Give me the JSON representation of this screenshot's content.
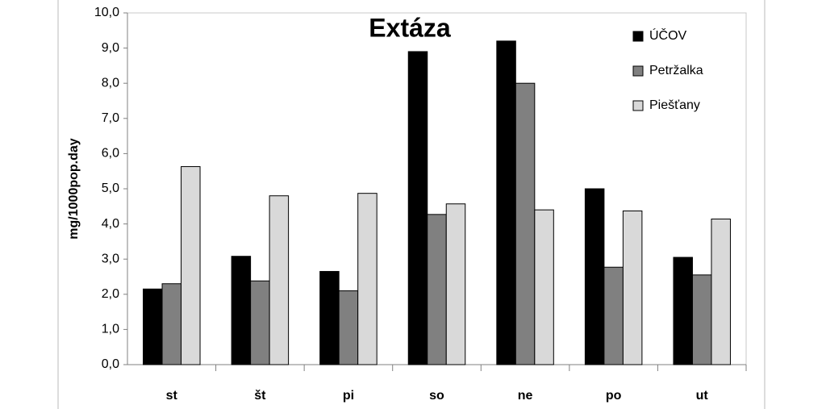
{
  "chart_data": {
    "type": "bar",
    "title": "Extáza",
    "y_label": "mg/1000pop.day",
    "categories": [
      "st",
      "št",
      "pi",
      "so",
      "ne",
      "po",
      "ut"
    ],
    "series": [
      {
        "name": "ÚČOV",
        "color": "#000000",
        "values": [
          2.15,
          3.08,
          2.65,
          8.9,
          9.2,
          5.0,
          3.05
        ]
      },
      {
        "name": "Petržalka",
        "color": "#808080",
        "values": [
          2.3,
          2.38,
          2.1,
          4.27,
          8.0,
          2.77,
          2.55
        ]
      },
      {
        "name": "Piešťany",
        "color": "#d9d9d9",
        "values": [
          5.63,
          4.8,
          4.87,
          4.57,
          4.4,
          4.37,
          4.14
        ]
      }
    ],
    "ylim": [
      0,
      10
    ],
    "yticks": [
      {
        "value": 0,
        "label": "0,0"
      },
      {
        "value": 1,
        "label": "1,0"
      },
      {
        "value": 2,
        "label": "2,0"
      },
      {
        "value": 3,
        "label": "3,0"
      },
      {
        "value": 4,
        "label": "4,0"
      },
      {
        "value": 5,
        "label": "5,0"
      },
      {
        "value": 6,
        "label": "6,0"
      },
      {
        "value": 7,
        "label": "7,0"
      },
      {
        "value": 8,
        "label": "8,0"
      },
      {
        "value": 9,
        "label": "9,0"
      },
      {
        "value": 10,
        "label": "10,0"
      }
    ],
    "grid": false,
    "legend": "top-right"
  }
}
